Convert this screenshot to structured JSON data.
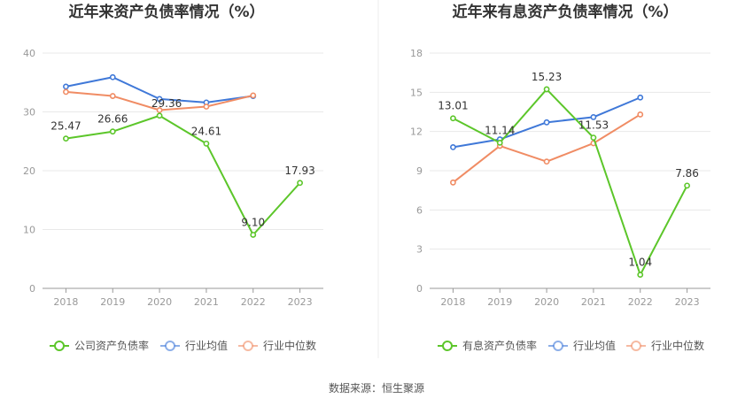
{
  "source_label": "数据来源：恒生聚源",
  "chart_data": [
    {
      "type": "line",
      "title": "近年来资产负债率情况（%）",
      "categories": [
        "2018",
        "2019",
        "2020",
        "2021",
        "2022",
        "2023"
      ],
      "ylim": [
        0,
        40
      ],
      "yticks": [
        0,
        10,
        20,
        30,
        40
      ],
      "grid": true,
      "legend_position": "bottom",
      "series": [
        {
          "name": "公司资产负债率",
          "color": "#5cc62a",
          "values": [
            25.47,
            26.66,
            29.36,
            24.61,
            9.1,
            17.93
          ],
          "labels": [
            "25.47",
            "26.66",
            "29.36",
            "24.61",
            "9.10",
            "17.93"
          ]
        },
        {
          "name": "行业均值",
          "color": "#3f78d8",
          "values": [
            34.3,
            35.9,
            32.2,
            31.6,
            32.7,
            null
          ]
        },
        {
          "name": "行业中位数",
          "color": "#f08c64",
          "values": [
            33.4,
            32.7,
            30.3,
            30.9,
            32.8,
            null
          ]
        }
      ]
    },
    {
      "type": "line",
      "title": "近年来有息资产负债率情况（%）",
      "categories": [
        "2018",
        "2019",
        "2020",
        "2021",
        "2022",
        "2023"
      ],
      "ylim": [
        0,
        18
      ],
      "yticks": [
        0,
        3,
        6,
        9,
        12,
        15,
        18
      ],
      "grid": true,
      "legend_position": "bottom",
      "series": [
        {
          "name": "有息资产负债率",
          "color": "#5cc62a",
          "values": [
            13.01,
            11.14,
            15.23,
            11.53,
            1.04,
            7.86
          ],
          "labels": [
            "13.01",
            "11.14",
            "15.23",
            "11.53",
            "1.04",
            "7.86"
          ]
        },
        {
          "name": "行业均值",
          "color": "#3f78d8",
          "values": [
            10.8,
            11.4,
            12.7,
            13.1,
            14.6,
            null
          ]
        },
        {
          "name": "行业中位数",
          "color": "#f08c64",
          "values": [
            8.1,
            10.9,
            9.7,
            11.1,
            13.3,
            null
          ]
        }
      ]
    }
  ]
}
